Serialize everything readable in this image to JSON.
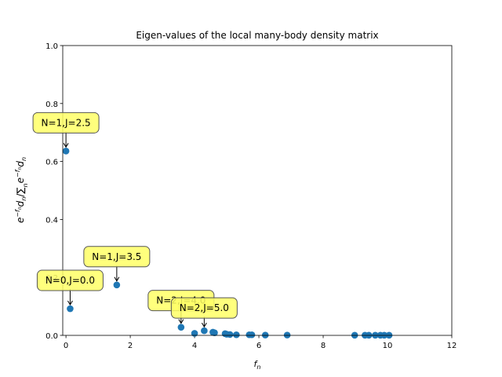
{
  "chart_data": {
    "type": "scatter",
    "title": "Eigen-values of the local many-body density matrix",
    "xlabel_base": "f",
    "xlabel_sub": "n",
    "ylabel": "e^{-f_n} d_n / Σ_n e^{-f_n} d_n",
    "xlim": [
      -0.1,
      12
    ],
    "ylim": [
      0,
      1
    ],
    "xticks": [
      "0",
      "2",
      "4",
      "6",
      "8",
      "10",
      "12"
    ],
    "yticks": [
      "0.0",
      "0.2",
      "0.4",
      "0.6",
      "0.8",
      "1.0"
    ],
    "color": "#1f77b4",
    "points": [
      {
        "x": 0.0,
        "y": 0.636
      },
      {
        "x": 0.13,
        "y": 0.092
      },
      {
        "x": 1.58,
        "y": 0.174
      },
      {
        "x": 3.58,
        "y": 0.028
      },
      {
        "x": 4.0,
        "y": 0.007
      },
      {
        "x": 4.3,
        "y": 0.016
      },
      {
        "x": 4.57,
        "y": 0.011
      },
      {
        "x": 4.62,
        "y": 0.009
      },
      {
        "x": 4.95,
        "y": 0.006
      },
      {
        "x": 5.0,
        "y": 0.004
      },
      {
        "x": 5.1,
        "y": 0.003
      },
      {
        "x": 5.3,
        "y": 0.002
      },
      {
        "x": 5.7,
        "y": 0.002
      },
      {
        "x": 5.78,
        "y": 0.002
      },
      {
        "x": 6.2,
        "y": 0.001
      },
      {
        "x": 6.88,
        "y": 0.001
      },
      {
        "x": 8.98,
        "y": 0.0005
      },
      {
        "x": 9.3,
        "y": 0.0005
      },
      {
        "x": 9.42,
        "y": 0.0005
      },
      {
        "x": 9.62,
        "y": 0.0005
      },
      {
        "x": 9.78,
        "y": 0.0005
      },
      {
        "x": 9.9,
        "y": 0.0005
      },
      {
        "x": 10.05,
        "y": 0.0005
      }
    ],
    "annotations": [
      {
        "text": "N=1,J=2.5",
        "point": [
          0.0,
          0.636
        ]
      },
      {
        "text": "N=1,J=3.5",
        "point": [
          1.58,
          0.174
        ]
      },
      {
        "text": "N=0,J=0.0",
        "point": [
          0.13,
          0.092
        ]
      },
      {
        "text": "N=2,J=4.0",
        "point": [
          3.58,
          0.028
        ]
      },
      {
        "text": "N=2,J=5.0",
        "point": [
          4.3,
          0.016
        ]
      }
    ],
    "annotation_color": "#ffff66"
  }
}
